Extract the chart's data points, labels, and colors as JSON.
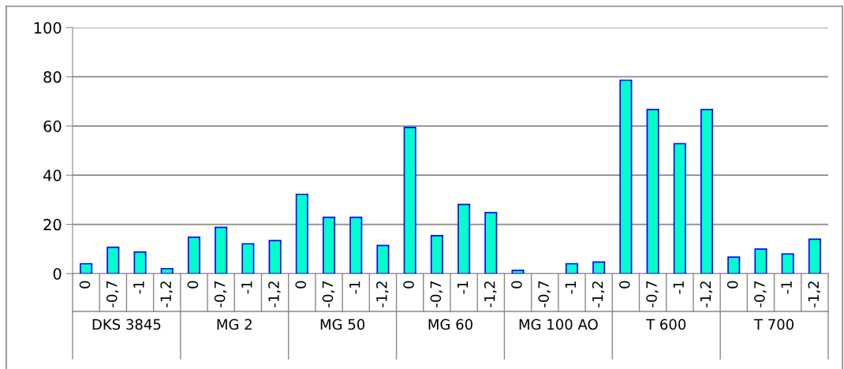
{
  "chart_data": {
    "type": "bar",
    "categories": [
      "0",
      "-0,7",
      "-1",
      "-1,2",
      "0",
      "-0,7",
      "-1",
      "-1,2",
      "0",
      "-0,7",
      "-1",
      "-1,2",
      "0",
      "-0,7",
      "-1",
      "-1,2",
      "0",
      "-0,7",
      "-1",
      "-1,2",
      "0",
      "-0,7",
      "-1",
      "-1,2",
      "0",
      "-0,7",
      "-1",
      "-1,2"
    ],
    "series": [
      {
        "color": "#00ffcc",
        "values": [
          4,
          10.7,
          8.8,
          2,
          14.8,
          18.8,
          12.1,
          13.4,
          32.2,
          22.9,
          22.9,
          11.4,
          59.4,
          15.4,
          28.1,
          24.8,
          1.3,
          0,
          4,
          4.7,
          78.6,
          66.7,
          52.8,
          66.7,
          6.7,
          10,
          8,
          14
        ]
      }
    ],
    "annotations": [
      "DKS 3845",
      "MG 2",
      "MG 50",
      "MG 60",
      "MG 100 AO",
      "T 600",
      "T 700"
    ],
    "ylim": [
      0,
      100
    ],
    "yticks": [
      0,
      20,
      40,
      60,
      80,
      100
    ],
    "grid": "y"
  }
}
